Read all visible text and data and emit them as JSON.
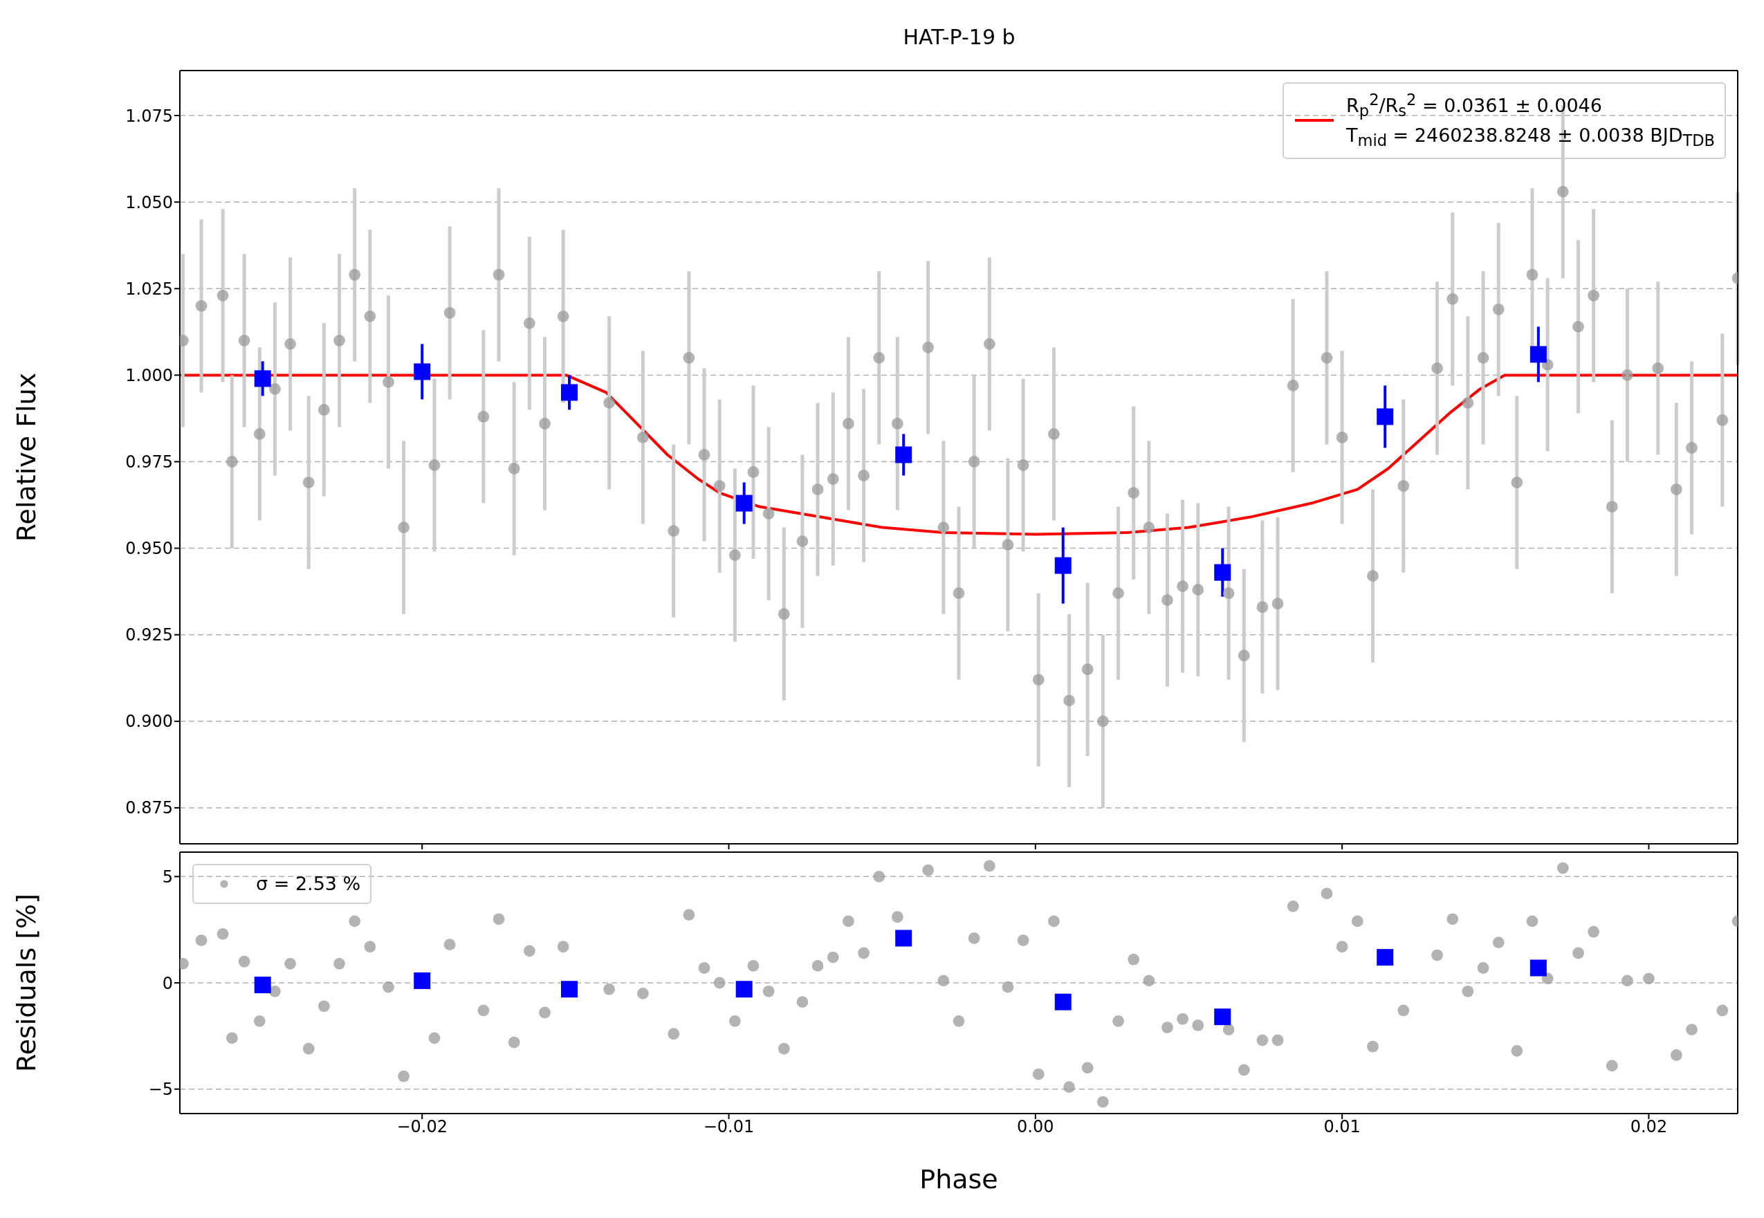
{
  "chart_data": [
    {
      "type": "scatter",
      "title": "HAT-P-19 b",
      "ylabel": "Relative Flux",
      "xlim": [
        -0.0279,
        0.0229
      ],
      "ylim": [
        0.8646,
        1.088
      ],
      "xticks": [
        -0.02,
        -0.01,
        0,
        0.01,
        0.02
      ],
      "yticks": [
        0.875,
        {
          "value": 0.9,
          "label": "0.900"
        },
        0.925,
        {
          "value": 0.95,
          "label": "0.950"
        },
        0.975,
        {
          "value": 1,
          "label": "1.000"
        },
        1.025,
        {
          "value": 1.05,
          "label": "1.050"
        },
        1.075
      ],
      "tick_labels": "y",
      "grid": "y",
      "legend": "top right",
      "series": [
        {
          "color": "#999999",
          "marker": "circle",
          "x": [
            -0.0278,
            -0.0272,
            -0.0265,
            -0.0262,
            -0.0258,
            -0.0253,
            -0.0248,
            -0.0243,
            -0.0237,
            -0.0232,
            -0.0227,
            -0.0222,
            -0.0217,
            -0.0211,
            -0.0206,
            -0.0196,
            -0.0191,
            -0.018,
            -0.0175,
            -0.017,
            -0.0165,
            -0.016,
            -0.0154,
            -0.0139,
            -0.0128,
            -0.0118,
            -0.0113,
            -0.0108,
            -0.0103,
            -0.0098,
            -0.0092,
            -0.0087,
            -0.0082,
            -0.0076,
            -0.0071,
            -0.0066,
            -0.0061,
            -0.0056,
            -0.0051,
            -0.0045,
            -0.0035,
            -0.003,
            -0.0025,
            -0.002,
            -0.0015,
            -0.0009,
            -0.0004,
            0.0001,
            0.0006,
            0.0011,
            0.0017,
            0.0022,
            0.0027,
            0.0032,
            0.0037,
            0.0043,
            0.0048,
            0.0053,
            0.0063,
            0.0068,
            0.0074,
            0.0079,
            0.0084,
            0.0095,
            0.01,
            0.011,
            0.012,
            0.0131,
            0.0136,
            0.0141,
            0.0146,
            0.0151,
            0.0157,
            0.0162,
            0.0167,
            0.0172,
            0.0177,
            0.0182,
            0.0188,
            0.0193,
            0.0203,
            0.0209,
            0.0214,
            0.0224,
            0.0229
          ],
          "values": [
            1.01,
            1.02,
            1.023,
            0.975,
            1.01,
            0.983,
            0.996,
            1.009,
            0.969,
            0.99,
            1.01,
            1.029,
            1.017,
            0.998,
            0.956,
            0.974,
            1.018,
            0.988,
            1.029,
            0.973,
            1.015,
            0.986,
            1.017,
            0.992,
            0.982,
            0.955,
            1.005,
            0.977,
            0.968,
            0.948,
            0.972,
            0.96,
            0.931,
            0.952,
            0.967,
            0.97,
            0.986,
            0.971,
            1.005,
            0.986,
            1.008,
            0.956,
            0.937,
            0.975,
            1.009,
            0.951,
            0.974,
            0.912,
            0.983,
            0.906,
            0.915,
            0.9,
            0.937,
            0.966,
            0.956,
            0.935,
            0.939,
            0.938,
            0.937,
            0.919,
            0.933,
            0.934,
            0.997,
            1.005,
            0.982,
            0.942,
            0.968,
            1.002,
            1.022,
            0.992,
            1.005,
            1.019,
            0.969,
            1.029,
            1.003,
            1.053,
            1.014,
            1.023,
            0.962,
            1.0,
            1.002,
            0.967,
            0.979,
            0.987,
            1.028
          ],
          "errors": [
            0.025,
            0.025,
            0.025,
            0.025,
            0.025,
            0.025,
            0.025,
            0.025,
            0.025,
            0.025,
            0.025,
            0.025,
            0.025,
            0.025,
            0.025,
            0.025,
            0.025,
            0.025,
            0.025,
            0.025,
            0.025,
            0.025,
            0.025,
            0.025,
            0.025,
            0.025,
            0.025,
            0.025,
            0.025,
            0.025,
            0.025,
            0.025,
            0.025,
            0.025,
            0.025,
            0.025,
            0.025,
            0.025,
            0.025,
            0.025,
            0.025,
            0.025,
            0.025,
            0.025,
            0.025,
            0.025,
            0.025,
            0.025,
            0.025,
            0.025,
            0.025,
            0.025,
            0.025,
            0.025,
            0.025,
            0.025,
            0.025,
            0.025,
            0.025,
            0.025,
            0.025,
            0.025,
            0.025,
            0.025,
            0.025,
            0.025,
            0.025,
            0.025,
            0.025,
            0.025,
            0.025,
            0.025,
            0.025,
            0.025,
            0.025,
            0.025,
            0.025,
            0.025,
            0.025,
            0.025,
            0.025,
            0.025,
            0.025,
            0.025,
            0.025
          ]
        },
        {
          "color": "#0000ff",
          "marker": "square",
          "x": [
            -0.0252,
            -0.02,
            -0.0152,
            -0.0095,
            -0.0043,
            0.0009,
            0.0061,
            0.0114,
            0.0164
          ],
          "values": [
            0.999,
            1.001,
            0.995,
            0.963,
            0.977,
            0.945,
            0.943,
            0.988,
            1.006
          ],
          "errors": [
            0.005,
            0.008,
            0.005,
            0.006,
            0.006,
            0.011,
            0.007,
            0.009,
            0.008
          ]
        },
        {
          "type": "line",
          "name": "R$_{p}$$^{2}$/R$_{s}$$^{2}$ = 0.0361 ± 0.0046\nT$_{mid}$ = 2460238.8248 ± 0.0038 BJD$_{TDB}$",
          "color": "#ff0000",
          "marker": "none",
          "line_style": "solid",
          "x": [
            -0.0279,
            -0.0153,
            -0.014,
            -0.013,
            -0.012,
            -0.011,
            -0.0103,
            -0.009,
            -0.007,
            -0.005,
            -0.003,
            0,
            0.003,
            0.005,
            0.007,
            0.009,
            0.0105,
            0.0115,
            0.0125,
            0.0135,
            0.0145,
            0.0153,
            0.0229
          ],
          "values": [
            1,
            1,
            0.995,
            0.986,
            0.977,
            0.97,
            0.966,
            0.962,
            0.959,
            0.956,
            0.9545,
            0.954,
            0.9545,
            0.956,
            0.959,
            0.963,
            0.967,
            0.973,
            0.981,
            0.989,
            0.996,
            1,
            1
          ]
        }
      ]
    },
    {
      "type": "scatter",
      "xlabel": "Phase",
      "ylabel": "Residuals [%]",
      "xlim": [
        -0.0279,
        0.0229
      ],
      "ylim": [
        -6.15,
        6.15
      ],
      "xticks": [
        {
          "value": -0.02,
          "label": "−0.02"
        },
        {
          "value": -0.01,
          "label": "−0.01"
        },
        {
          "value": 0,
          "label": "0.00"
        },
        0.01,
        0.02
      ],
      "yticks": [
        {
          "value": -5,
          "label": "−5"
        },
        0,
        5
      ],
      "grid": "y",
      "legend": "top left",
      "series": [
        {
          "name": "σ = 2.53 %",
          "color": "#999999",
          "marker": "circle",
          "x": [
            -0.0278,
            -0.0272,
            -0.0265,
            -0.0262,
            -0.0258,
            -0.0253,
            -0.0248,
            -0.0243,
            -0.0237,
            -0.0232,
            -0.0227,
            -0.0222,
            -0.0217,
            -0.0211,
            -0.0206,
            -0.0196,
            -0.0191,
            -0.018,
            -0.0175,
            -0.017,
            -0.0165,
            -0.016,
            -0.0154,
            -0.0139,
            -0.0128,
            -0.0118,
            -0.0113,
            -0.0108,
            -0.0103,
            -0.0098,
            -0.0092,
            -0.0087,
            -0.0082,
            -0.0076,
            -0.0071,
            -0.0066,
            -0.0061,
            -0.0056,
            -0.0051,
            -0.0045,
            -0.0035,
            -0.003,
            -0.0025,
            -0.002,
            -0.0015,
            -0.0009,
            -0.0004,
            0.0001,
            0.0006,
            0.0011,
            0.0017,
            0.0022,
            0.0027,
            0.0032,
            0.0037,
            0.0043,
            0.0048,
            0.0053,
            0.0063,
            0.0068,
            0.0074,
            0.0079,
            0.0084,
            0.0095,
            0.01,
            0.0105,
            0.011,
            0.012,
            0.0131,
            0.0136,
            0.0141,
            0.0146,
            0.0151,
            0.0157,
            0.0162,
            0.0167,
            0.0172,
            0.0177,
            0.0182,
            0.0188,
            0.0193,
            0.02,
            0.0209,
            0.0214,
            0.0224,
            0.0229
          ],
          "values": [
            0.9,
            2.0,
            2.3,
            -2.6,
            1.0,
            -1.8,
            -0.4,
            0.9,
            -3.1,
            -1.1,
            0.9,
            2.9,
            1.7,
            -0.2,
            -4.4,
            -2.6,
            1.8,
            -1.3,
            3.0,
            -2.8,
            1.5,
            -1.4,
            1.7,
            -0.3,
            -0.5,
            -2.4,
            3.2,
            0.7,
            0.0,
            -1.8,
            0.8,
            -0.4,
            -3.1,
            -0.9,
            0.8,
            1.2,
            2.9,
            1.4,
            5.0,
            3.1,
            5.3,
            0.1,
            -1.8,
            2.1,
            5.5,
            -0.2,
            2.0,
            -4.3,
            2.9,
            -4.9,
            -4.0,
            -5.6,
            -1.8,
            1.1,
            0.1,
            -2.1,
            -1.7,
            -2.0,
            -2.2,
            -4.1,
            -2.7,
            -2.7,
            3.6,
            4.2,
            1.7,
            2.9,
            -3.0,
            -1.3,
            1.3,
            3.0,
            -0.4,
            0.7,
            1.9,
            -3.2,
            2.9,
            0.2,
            5.4,
            1.4,
            2.4,
            -3.9,
            0.1,
            0.2,
            -3.4,
            -2.2,
            -1.3,
            2.9
          ]
        },
        {
          "color": "#0000ff",
          "marker": "square",
          "x": [
            -0.0252,
            -0.02,
            -0.0152,
            -0.0095,
            -0.0043,
            0.0009,
            0.0061,
            0.0114,
            0.0164
          ],
          "values": [
            -0.1,
            0.1,
            -0.3,
            -0.3,
            2.1,
            -0.9,
            -1.6,
            1.2,
            0.7
          ]
        }
      ]
    }
  ]
}
